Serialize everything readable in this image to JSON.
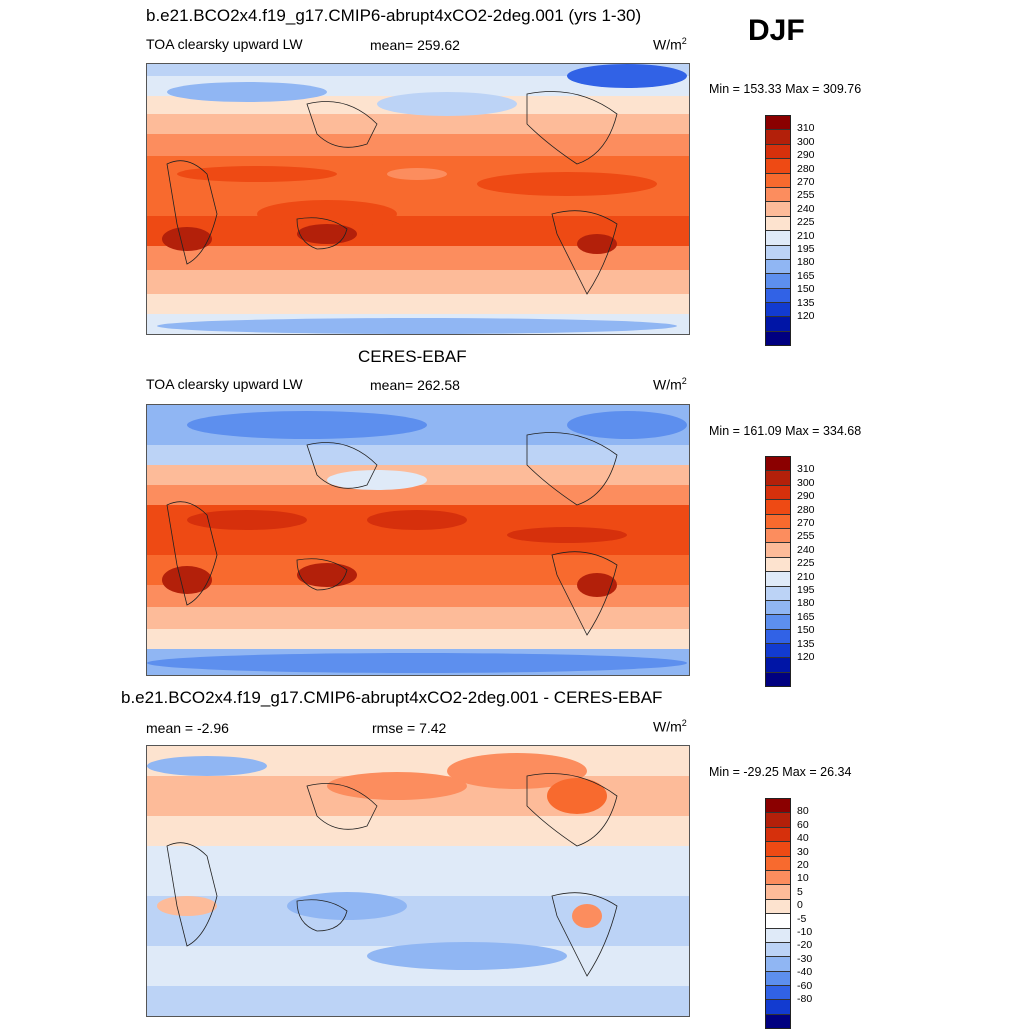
{
  "season": "DJF",
  "panels": [
    {
      "title": "b.e21.BCO2x4.f19_g17.CMIP6-abrupt4xCO2-2deg.001 (yrs 1-30)",
      "variable": "TOA clearsky upward LW",
      "stat1": "mean= 259.62",
      "stat2": "",
      "units": "W/m",
      "units_exp": "2",
      "minmax": "Min = 153.33 Max = 309.76",
      "colorbar_labels": [
        "310",
        "300",
        "290",
        "280",
        "270",
        "255",
        "240",
        "225",
        "210",
        "195",
        "180",
        "165",
        "150",
        "135",
        "120"
      ],
      "colorbar_colors": [
        "#8b0000",
        "#b3200a",
        "#d6300c",
        "#ee4a14",
        "#f86a2e",
        "#fc8d5e",
        "#fdbb99",
        "#fde3cf",
        "#dfeaf8",
        "#bcd3f6",
        "#90b6f3",
        "#5d8fee",
        "#3162e6",
        "#123bd0",
        "#0015a6",
        "#000080"
      ]
    },
    {
      "title": "CERES-EBAF",
      "variable": "TOA clearsky upward LW",
      "stat1": "mean= 262.58",
      "stat2": "",
      "units": "W/m",
      "units_exp": "2",
      "minmax": "Min = 161.09 Max = 334.68",
      "colorbar_labels": [
        "310",
        "300",
        "290",
        "280",
        "270",
        "255",
        "240",
        "225",
        "210",
        "195",
        "180",
        "165",
        "150",
        "135",
        "120"
      ],
      "colorbar_colors": [
        "#8b0000",
        "#b3200a",
        "#d6300c",
        "#ee4a14",
        "#f86a2e",
        "#fc8d5e",
        "#fdbb99",
        "#fde3cf",
        "#dfeaf8",
        "#bcd3f6",
        "#90b6f3",
        "#5d8fee",
        "#3162e6",
        "#123bd0",
        "#0015a6",
        "#000080"
      ]
    },
    {
      "title": "b.e21.BCO2x4.f19_g17.CMIP6-abrupt4xCO2-2deg.001 - CERES-EBAF",
      "variable": "",
      "stat1": "mean =  -2.96",
      "stat2": "rmse =   7.42",
      "units": "W/m",
      "units_exp": "2",
      "minmax": "Min = -29.25 Max =  26.34",
      "colorbar_labels": [
        "80",
        "60",
        "40",
        "30",
        "20",
        "10",
        "5",
        "0",
        "-5",
        "-10",
        "-20",
        "-30",
        "-40",
        "-60",
        "-80"
      ],
      "colorbar_colors": [
        "#8b0000",
        "#b3200a",
        "#d6300c",
        "#ee4a14",
        "#f86a2e",
        "#fc8d5e",
        "#fdbb99",
        "#fde3cf",
        "#ffffff",
        "#dfeaf8",
        "#bcd3f6",
        "#90b6f3",
        "#5d8fee",
        "#3162e6",
        "#123bd0",
        "#000080"
      ]
    }
  ]
}
